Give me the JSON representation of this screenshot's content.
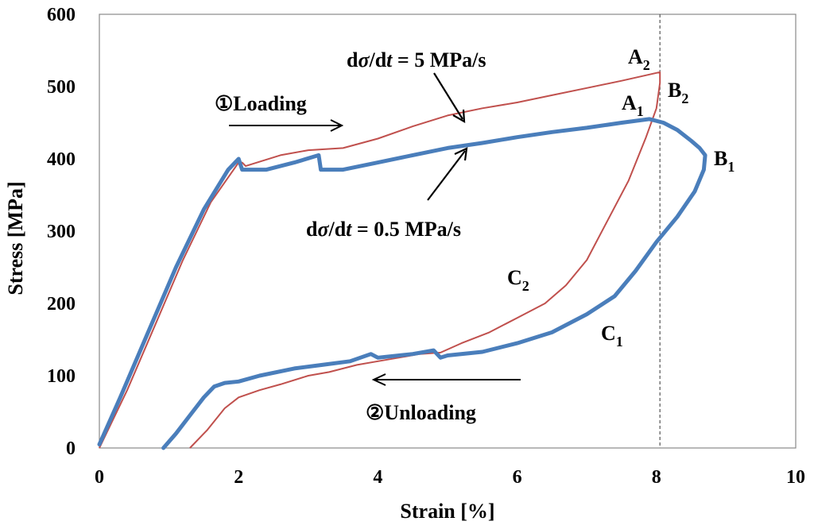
{
  "chart_data": {
    "type": "line",
    "xlabel": "Strain [%]",
    "ylabel": "Stress [MPa]",
    "xlim": [
      0,
      10
    ],
    "ylim": [
      0,
      600
    ],
    "xticks": [
      "0",
      "2",
      "4",
      "6",
      "8",
      "10"
    ],
    "yticks": [
      "0",
      "100",
      "200",
      "300",
      "400",
      "500",
      "600"
    ],
    "grid": false,
    "reference_line": {
      "x": 8.05,
      "style": "dashed"
    },
    "series": [
      {
        "name": "dσ/dt = 0.5 MPa/s",
        "color": "#4a7ebb",
        "x": [
          0.0,
          0.3,
          0.7,
          1.1,
          1.5,
          1.85,
          2.0,
          2.05,
          2.4,
          2.8,
          3.15,
          3.18,
          3.5,
          4.0,
          4.5,
          5.0,
          5.5,
          6.0,
          6.5,
          7.0,
          7.5,
          7.9,
          8.1,
          8.3,
          8.5,
          8.62,
          8.7,
          8.68,
          8.55,
          8.3,
          8.0,
          7.7,
          7.4,
          7.0,
          6.5,
          6.0,
          5.5,
          5.0,
          4.9,
          4.8,
          4.5,
          4.0,
          3.9,
          3.6,
          3.2,
          2.8,
          2.3,
          2.0,
          1.8,
          1.65,
          1.5,
          1.3,
          1.1,
          0.92
        ],
        "y": [
          5,
          70,
          160,
          250,
          330,
          385,
          400,
          385,
          385,
          395,
          405,
          385,
          385,
          395,
          405,
          415,
          422,
          430,
          437,
          443,
          450,
          455,
          450,
          440,
          425,
          415,
          405,
          385,
          355,
          320,
          285,
          245,
          210,
          185,
          160,
          145,
          133,
          128,
          125,
          135,
          130,
          125,
          130,
          120,
          115,
          110,
          100,
          92,
          90,
          85,
          70,
          45,
          20,
          0
        ]
      },
      {
        "name": "dσ/dt = 5 MPa/s",
        "color": "#c0504d",
        "x": [
          0.0,
          0.4,
          0.8,
          1.2,
          1.6,
          2.0,
          2.05,
          2.1,
          2.6,
          3.0,
          3.5,
          4.0,
          4.5,
          5.0,
          5.5,
          6.0,
          6.5,
          7.0,
          7.5,
          8.05,
          8.05,
          8.0,
          7.85,
          7.6,
          7.3,
          7.0,
          6.7,
          6.4,
          6.0,
          5.6,
          5.2,
          4.9,
          4.6,
          4.3,
          4.0,
          3.7,
          3.3,
          3.0,
          2.6,
          2.3,
          2.0,
          1.8,
          1.55,
          1.3
        ],
        "y": [
          0,
          80,
          170,
          260,
          340,
          395,
          395,
          390,
          405,
          412,
          415,
          428,
          445,
          460,
          470,
          478,
          488,
          498,
          508,
          520,
          505,
          470,
          430,
          370,
          315,
          260,
          225,
          200,
          180,
          160,
          145,
          132,
          130,
          125,
          120,
          115,
          105,
          100,
          88,
          80,
          70,
          55,
          25,
          0
        ]
      }
    ],
    "annotations": [
      {
        "text": "①Loading"
      },
      {
        "text": "②Unloading"
      },
      {
        "prefix": "d",
        "sigma": "σ",
        "mid": "/d",
        "t": "t",
        "suffix": " = 5 MPa/s"
      },
      {
        "prefix": "d",
        "sigma": "σ",
        "mid": "/d",
        "t": "t",
        "suffix": " = 0.5 MPa/s"
      }
    ],
    "point_labels": [
      {
        "base": "A",
        "sub": "2"
      },
      {
        "base": "B",
        "sub": "2"
      },
      {
        "base": "A",
        "sub": "1"
      },
      {
        "base": "B",
        "sub": "1"
      },
      {
        "base": "C",
        "sub": "2"
      },
      {
        "base": "C",
        "sub": "1"
      }
    ]
  }
}
